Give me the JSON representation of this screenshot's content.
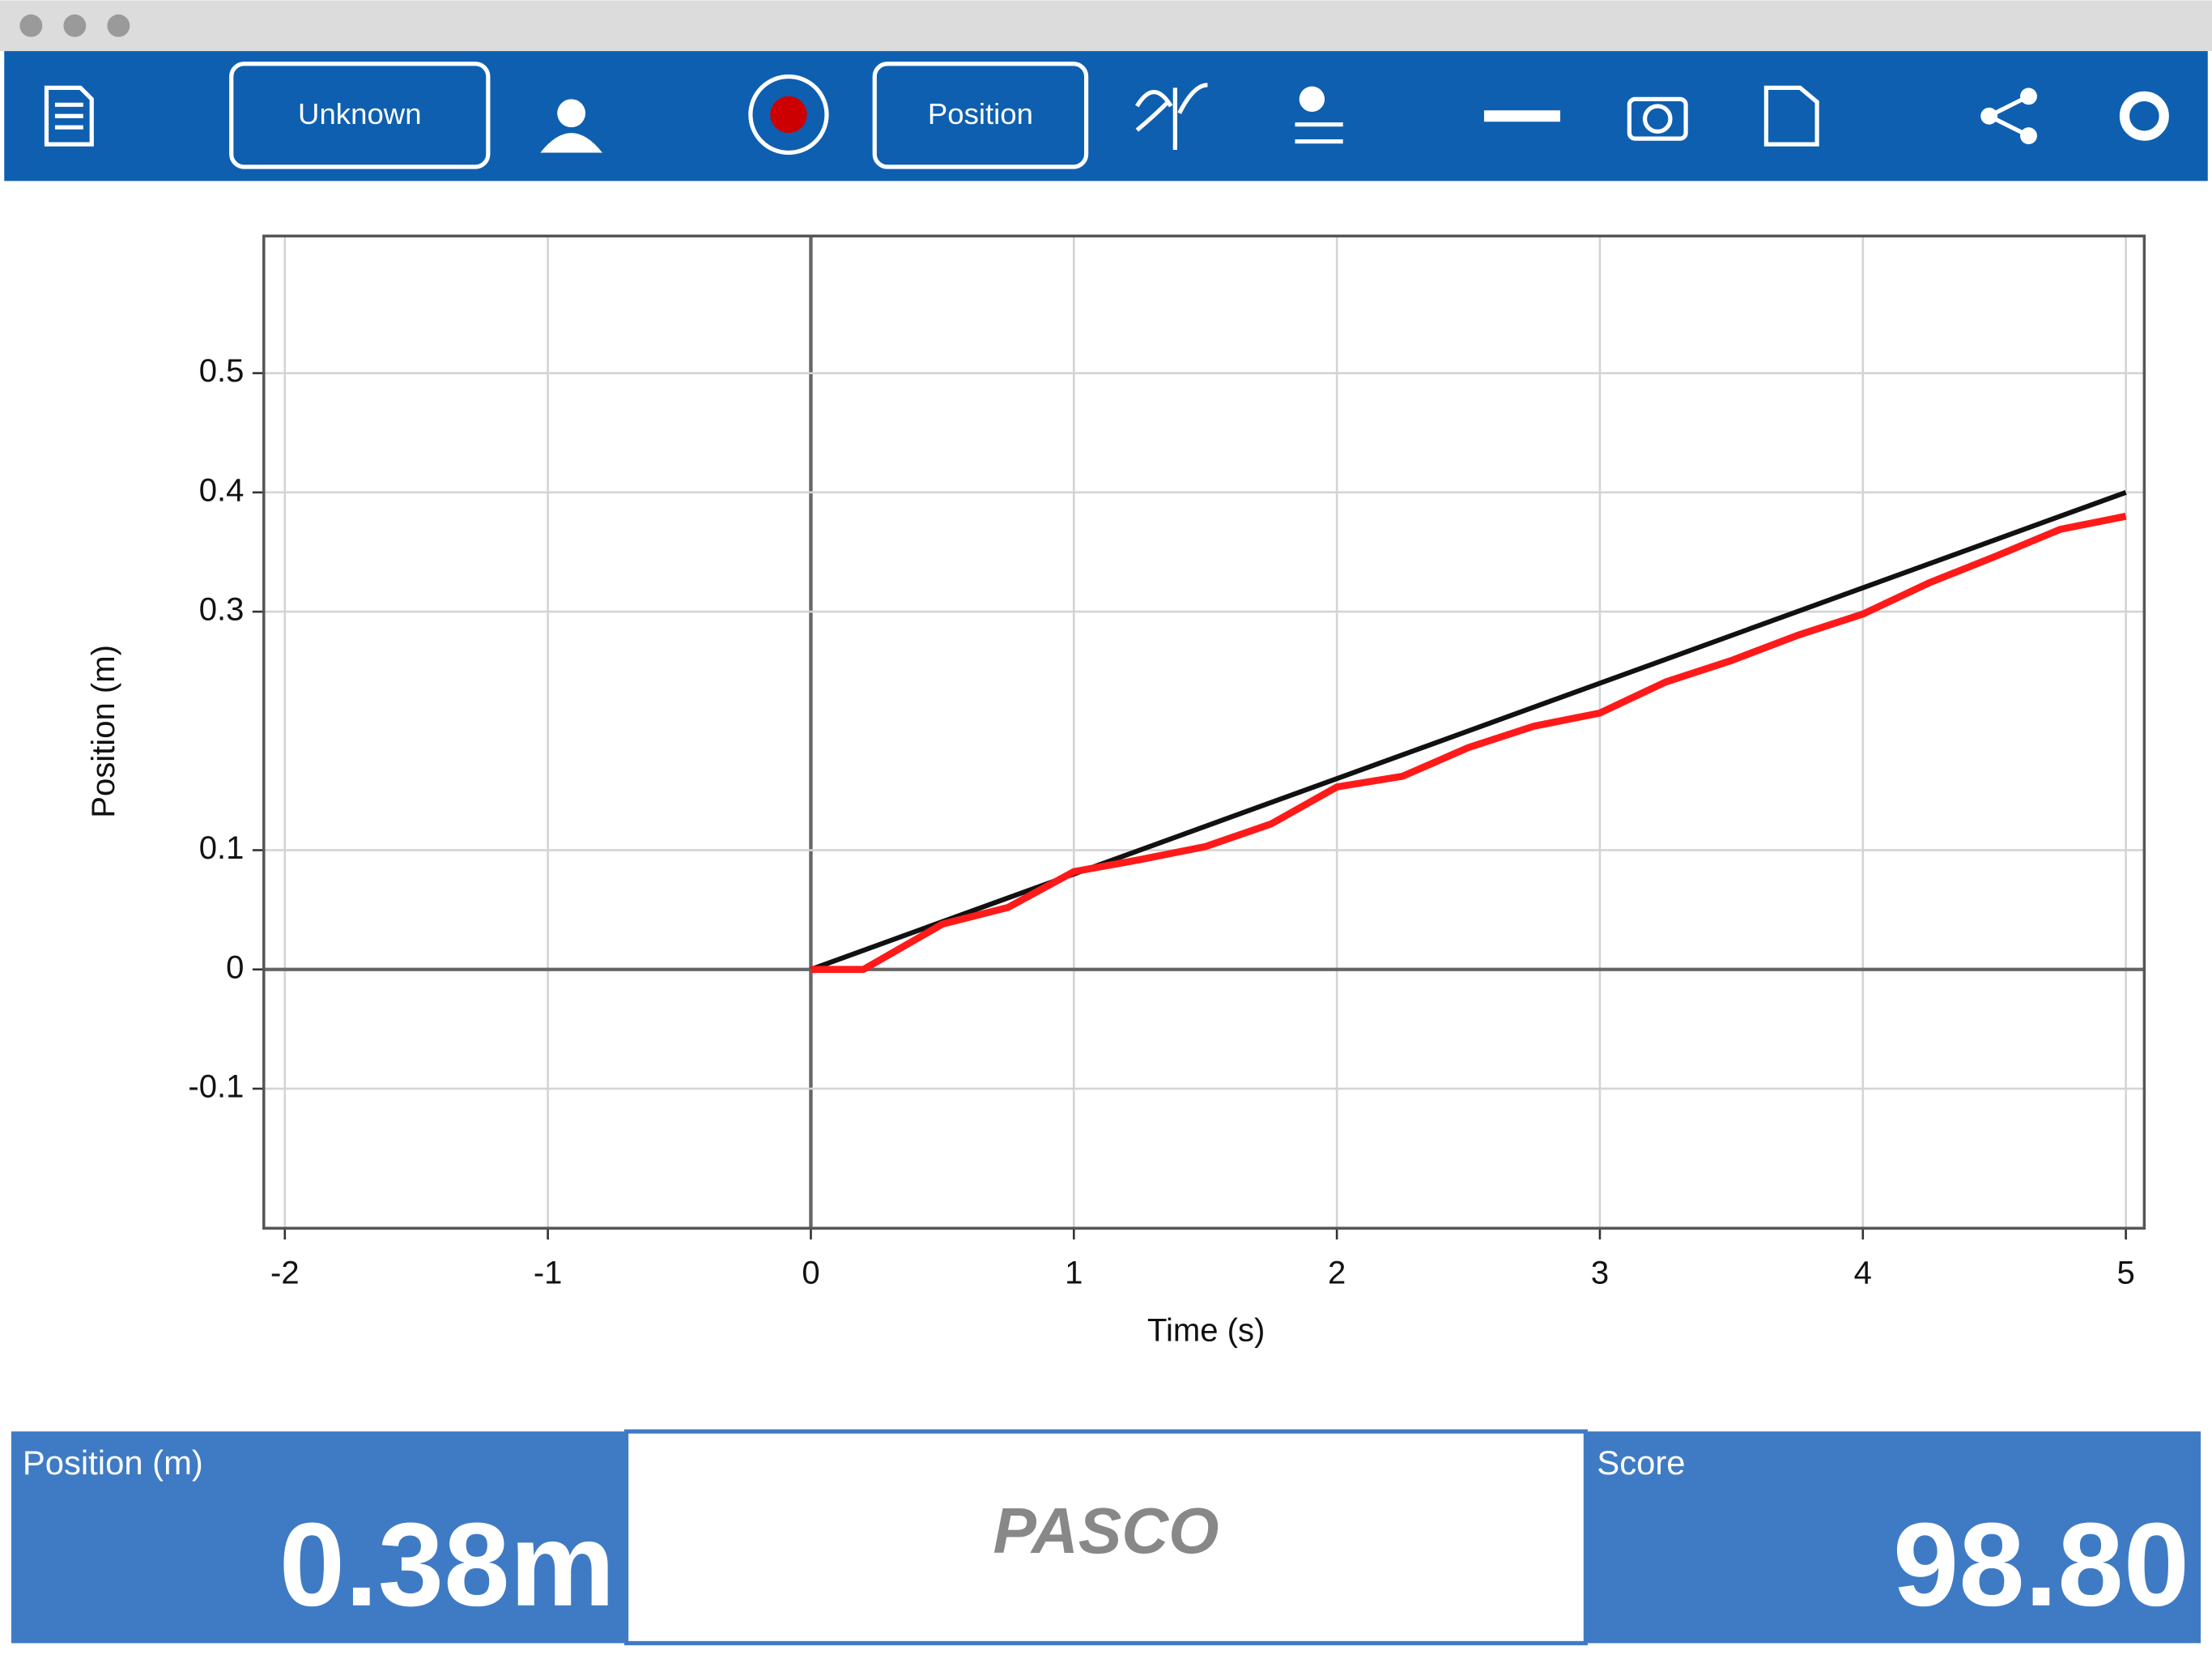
{
  "toolbar": {
    "buttons": [
      "Unknown",
      "Position"
    ]
  },
  "chart_data": {
    "type": "line",
    "x_label": "Time (s)",
    "y_label": "Position (m)",
    "xlim": [
      -2.08,
      5.07
    ],
    "ylim": [
      -0.217,
      0.615
    ],
    "xticks": [
      -2,
      -1,
      0,
      1,
      2,
      3,
      4,
      5
    ],
    "yticks": [
      -0.1,
      0.0,
      0.1,
      0.3,
      0.4,
      0.5
    ],
    "grid": true,
    "series": [
      {
        "color": "#111111",
        "x": [
          0,
          5
        ],
        "values": [
          0,
          0.4
        ]
      },
      {
        "color": "#ff1a1a",
        "x": [
          0,
          0.2,
          0.5,
          0.75,
          1,
          1.25,
          1.5,
          1.75,
          2,
          2.25,
          2.5,
          2.75,
          3,
          3.25,
          3.5,
          3.75,
          4,
          4.25,
          4.5,
          4.75,
          5
        ],
        "values": [
          0,
          0,
          0.038,
          0.052,
          0.082,
          0.092,
          0.103,
          0.122,
          0.153,
          0.162,
          0.186,
          0.204,
          0.215,
          0.241,
          0.259,
          0.28,
          0.298,
          0.324,
          0.346,
          0.369,
          0.38
        ]
      }
    ]
  },
  "footer": {
    "left": {
      "label": "Position (m)",
      "value": "0.38m"
    },
    "center": "PASCO",
    "right": {
      "label": "Score",
      "value": "98.80"
    }
  }
}
